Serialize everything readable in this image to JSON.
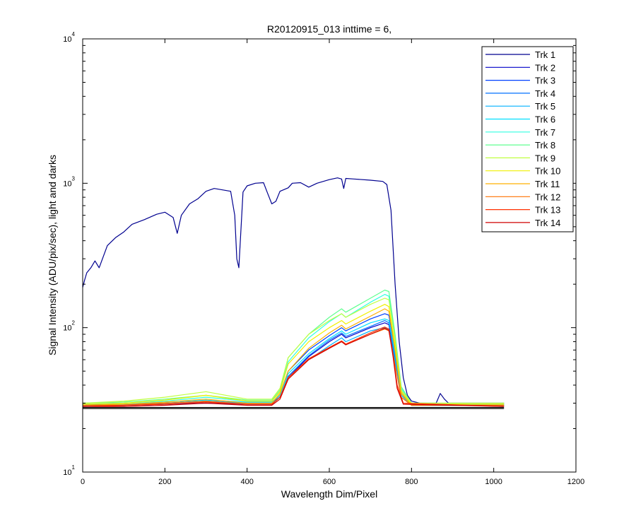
{
  "chart_data": {
    "type": "line",
    "title": "R20120915_013 inttime = 6,",
    "xlabel": "Wavelength Dim/Pixel",
    "ylabel": "Signal Intensity (ADU/pix/sec), light and darks",
    "xlim": [
      0,
      1200
    ],
    "ylim": [
      10,
      10000
    ],
    "yscale": "log",
    "xticks": [
      0,
      200,
      400,
      600,
      800,
      1000,
      1200
    ],
    "yticks": [
      {
        "base": "10",
        "exp": "1",
        "value": 10
      },
      {
        "base": "10",
        "exp": "2",
        "value": 100
      },
      {
        "base": "10",
        "exp": "3",
        "value": 1000
      },
      {
        "base": "10",
        "exp": "4",
        "value": 10000
      }
    ],
    "grid": false,
    "legend_position": "top-right",
    "series": [
      {
        "name": "Trk 1",
        "color": "#00008F",
        "x": [
          0,
          5,
          10,
          20,
          30,
          40,
          60,
          80,
          100,
          120,
          150,
          180,
          200,
          220,
          230,
          240,
          260,
          280,
          300,
          320,
          330,
          360,
          370,
          375,
          380,
          390,
          400,
          420,
          440,
          450,
          460,
          470,
          480,
          500,
          510,
          530,
          550,
          570,
          600,
          620,
          630,
          635,
          640,
          660,
          700,
          730,
          740,
          750,
          760,
          770,
          780,
          790,
          800,
          820,
          850,
          860,
          870,
          880,
          890,
          900,
          950,
          1000,
          1025
        ],
        "y": [
          190,
          215,
          240,
          260,
          290,
          260,
          370,
          420,
          460,
          520,
          560,
          610,
          630,
          580,
          450,
          600,
          720,
          780,
          880,
          920,
          910,
          880,
          600,
          300,
          260,
          870,
          960,
          1000,
          1010,
          850,
          720,
          750,
          880,
          930,
          1000,
          1010,
          940,
          1000,
          1060,
          1090,
          1070,
          920,
          1080,
          1070,
          1050,
          1030,
          980,
          650,
          200,
          80,
          45,
          34,
          31,
          30,
          30,
          30,
          35,
          32,
          30,
          30,
          30,
          30,
          30
        ]
      },
      {
        "name": "Trk 2",
        "color": "#0000C8",
        "x": [
          0,
          100,
          200,
          300,
          400,
          460,
          480,
          500,
          550,
          600,
          630,
          640,
          700,
          735,
          745,
          760,
          775,
          800,
          1025
        ],
        "y": [
          29,
          29,
          29.5,
          30,
          29.5,
          29.5,
          33,
          45,
          63,
          80,
          90,
          85,
          100,
          108,
          105,
          60,
          35,
          29,
          29
        ]
      },
      {
        "name": "Trk 3",
        "color": "#0040FF",
        "x": [
          0,
          100,
          200,
          300,
          400,
          460,
          480,
          500,
          550,
          600,
          630,
          640,
          700,
          735,
          745,
          760,
          775,
          800,
          1025
        ],
        "y": [
          29.5,
          29.5,
          30,
          31,
          30,
          30,
          34,
          50,
          70,
          88,
          100,
          95,
          115,
          125,
          122,
          70,
          36,
          29.5,
          29.5
        ]
      },
      {
        "name": "Trk 4",
        "color": "#0070FF",
        "x": [
          0,
          100,
          200,
          300,
          400,
          460,
          480,
          500,
          550,
          600,
          630,
          640,
          700,
          735,
          745,
          760,
          775,
          800,
          1025
        ],
        "y": [
          29,
          29,
          29.5,
          30.5,
          29.5,
          29.5,
          33,
          46,
          64,
          82,
          92,
          87,
          102,
          112,
          108,
          62,
          35,
          29,
          29
        ]
      },
      {
        "name": "Trk 5",
        "color": "#00B0FF",
        "x": [
          0,
          100,
          200,
          300,
          400,
          460,
          480,
          500,
          550,
          600,
          630,
          640,
          700,
          735,
          745,
          760,
          775,
          800,
          1025
        ],
        "y": [
          29,
          29,
          30,
          31,
          30,
          30,
          33,
          44,
          60,
          75,
          85,
          80,
          95,
          100,
          98,
          58,
          34,
          29,
          29
        ]
      },
      {
        "name": "Trk 6",
        "color": "#00E0FF",
        "x": [
          0,
          100,
          200,
          300,
          400,
          460,
          480,
          500,
          550,
          600,
          630,
          640,
          700,
          735,
          745,
          760,
          775,
          800,
          1025
        ],
        "y": [
          29,
          29.5,
          30.5,
          31.5,
          30.5,
          30.5,
          34,
          48,
          66,
          84,
          95,
          90,
          108,
          115,
          112,
          66,
          35,
          29,
          29
        ]
      },
      {
        "name": "Trk 7",
        "color": "#30FFE0",
        "x": [
          0,
          100,
          200,
          300,
          400,
          460,
          480,
          500,
          550,
          600,
          630,
          640,
          700,
          735,
          745,
          760,
          775,
          800,
          1025
        ],
        "y": [
          29.5,
          30,
          31,
          33,
          31,
          31,
          36,
          58,
          85,
          110,
          125,
          118,
          150,
          170,
          165,
          85,
          38,
          29.5,
          29.5
        ]
      },
      {
        "name": "Trk 8",
        "color": "#60FF90",
        "x": [
          0,
          100,
          200,
          300,
          400,
          460,
          480,
          500,
          550,
          600,
          630,
          640,
          700,
          735,
          745,
          760,
          775,
          800,
          1025
        ],
        "y": [
          30,
          30.5,
          32,
          34,
          31.5,
          31.5,
          37,
          62,
          90,
          118,
          135,
          128,
          160,
          182,
          178,
          90,
          39,
          30,
          30
        ]
      },
      {
        "name": "Trk 9",
        "color": "#C0FF40",
        "x": [
          0,
          100,
          200,
          300,
          400,
          460,
          480,
          500,
          550,
          600,
          630,
          640,
          700,
          735,
          745,
          760,
          775,
          800,
          1025
        ],
        "y": [
          30,
          31,
          33,
          36,
          32,
          32,
          38,
          62,
          90,
          112,
          125,
          118,
          145,
          160,
          156,
          82,
          37,
          30,
          30
        ]
      },
      {
        "name": "Trk 10",
        "color": "#F0F000",
        "x": [
          0,
          100,
          200,
          300,
          400,
          460,
          480,
          500,
          550,
          600,
          630,
          640,
          700,
          735,
          745,
          760,
          775,
          800,
          1025
        ],
        "y": [
          29.5,
          30,
          31.5,
          34,
          31,
          31,
          36,
          56,
          80,
          100,
          112,
          106,
          130,
          145,
          140,
          75,
          36,
          29.5,
          29.5
        ]
      },
      {
        "name": "Trk 11",
        "color": "#FFB000",
        "x": [
          0,
          100,
          200,
          300,
          400,
          460,
          480,
          500,
          550,
          600,
          630,
          640,
          700,
          735,
          745,
          760,
          775,
          800,
          1025
        ],
        "y": [
          29,
          29.5,
          30.5,
          32,
          30,
          30,
          35,
          50,
          72,
          92,
          104,
          98,
          120,
          135,
          130,
          70,
          35,
          29,
          29
        ]
      },
      {
        "name": "Trk 12",
        "color": "#FF7000",
        "x": [
          0,
          100,
          200,
          300,
          400,
          460,
          480,
          500,
          550,
          600,
          630,
          640,
          700,
          735,
          745,
          760,
          775,
          800,
          1025
        ],
        "y": [
          29,
          29,
          30,
          31,
          29.5,
          29.5,
          33,
          44,
          60,
          72,
          80,
          76,
          90,
          98,
          95,
          55,
          33,
          29,
          29
        ]
      },
      {
        "name": "Trk 13",
        "color": "#FF3000",
        "x": [
          0,
          100,
          200,
          300,
          400,
          460,
          480,
          500,
          550,
          600,
          630,
          640,
          700,
          730,
          735,
          745,
          755,
          765,
          780,
          1025
        ],
        "y": [
          28.5,
          29,
          29.5,
          30.5,
          29.5,
          29.5,
          33,
          45,
          61,
          73,
          81,
          77,
          92,
          100,
          101,
          98,
          65,
          40,
          30,
          28.5
        ]
      },
      {
        "name": "Trk 14",
        "color": "#D00000",
        "x": [
          0,
          100,
          200,
          300,
          400,
          460,
          480,
          500,
          550,
          600,
          630,
          640,
          700,
          730,
          735,
          745,
          755,
          765,
          780,
          1025
        ],
        "y": [
          28.5,
          28.5,
          29,
          30,
          29,
          29,
          32,
          44,
          60,
          72,
          80,
          76,
          90,
          98,
          99,
          96,
          63,
          38,
          29.5,
          28.5
        ]
      },
      {
        "name": "",
        "color": "#000000",
        "x": [
          0,
          1025
        ],
        "y": [
          27.5,
          27.5
        ]
      },
      {
        "name": "",
        "color": "#000000",
        "x": [
          0,
          1025
        ],
        "y": [
          28,
          28
        ]
      }
    ]
  }
}
